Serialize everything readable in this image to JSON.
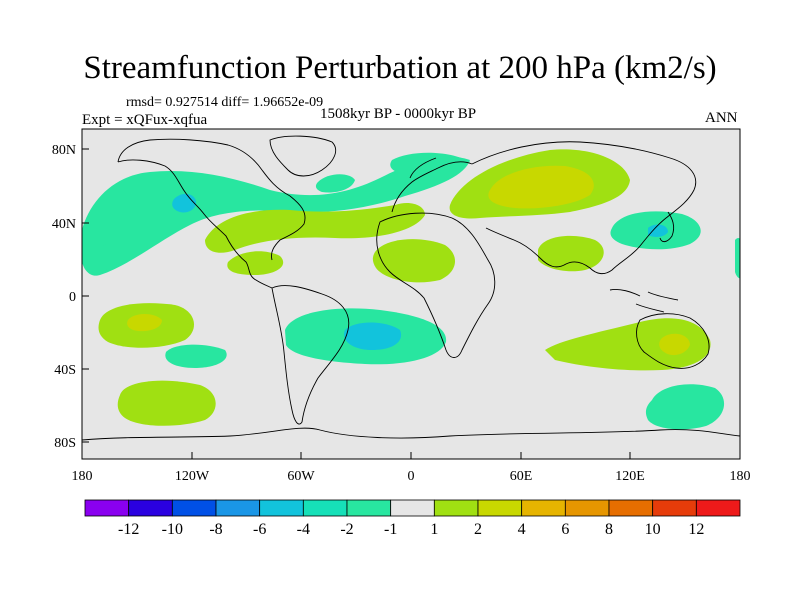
{
  "title": "Streamfunction Perturbation at 200 hPa (km2/s)",
  "stats": "rmsd= 0.927514 diff= 1.96652e-09",
  "period": "1508kyr BP - 0000kyr BP",
  "experiment": "Expt = xQFux-xqfua",
  "season": "ANN",
  "axes": {
    "x_ticks": [
      "180",
      "120W",
      "60W",
      "0",
      "60E",
      "120E",
      "180"
    ],
    "y_ticks": [
      "80N",
      "40N",
      "0",
      "40S",
      "80S"
    ]
  },
  "colorbar": {
    "labels": [
      "-12",
      "-10",
      "-8",
      "-6",
      "-4",
      "-2",
      "-1",
      "1",
      "2",
      "4",
      "6",
      "8",
      "10",
      "12"
    ],
    "colors": [
      "#8a00f0",
      "#2a00e0",
      "#0050e6",
      "#1a96e6",
      "#12c3dc",
      "#16e0b8",
      "#28e6a0",
      "#e6e6e6",
      "#a0e012",
      "#c8d800",
      "#e6b400",
      "#e69600",
      "#e66e00",
      "#e63c0a",
      "#ee1a1a"
    ]
  },
  "colors": {
    "background": "#e6e6e6",
    "neg1": "#28e6a0",
    "neg2": "#12c3dc",
    "neg4": "#1a96e6",
    "pos1": "#a0e012",
    "pos2": "#c8d800",
    "pos4": "#e6b400"
  }
}
